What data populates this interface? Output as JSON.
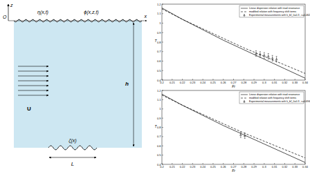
{
  "diagram": {
    "origin": "O",
    "z_axis": "z",
    "x_axis": "x",
    "surface": "η(x,t)",
    "potential": "ϕ(x,z,t)",
    "velocity": "U",
    "depth": "h",
    "bottom": "ζ(x)",
    "length": "L"
  },
  "chart_data": [
    {
      "type": "line",
      "x_label": "Fr",
      "y_label": "T",
      "xlim": [
        0.2,
        0.34
      ],
      "ylim": [
        0.4,
        1.2
      ],
      "xticks": [
        0.2,
        0.21,
        0.22,
        0.23,
        0.24,
        0.25,
        0.26,
        0.27,
        0.28,
        0.29,
        0.3,
        0.31,
        0.32,
        0.33,
        0.34
      ],
      "yticks": [
        0.4,
        0.5,
        0.6,
        0.7,
        0.8,
        0.9,
        1,
        1.1,
        1.2
      ],
      "legend": "upper right",
      "series": [
        {
          "name": "Linear dispersion relation with triad resonance",
          "type": "line",
          "line_style": "solid",
          "color": "#000000",
          "x": [
            0.2,
            0.22,
            0.24,
            0.26,
            0.28,
            0.3,
            0.32,
            0.34
          ],
          "values": [
            1.16,
            1.04,
            0.93,
            0.82,
            0.72,
            0.62,
            0.52,
            0.42
          ]
        },
        {
          "name": "modified relation with frequency shift terms",
          "type": "line",
          "line_style": "dashed",
          "color": "#000000",
          "x": [
            0.2,
            0.22,
            0.24,
            0.26,
            0.28,
            0.3,
            0.32,
            0.34
          ],
          "values": [
            1.15,
            1.04,
            0.94,
            0.84,
            0.74,
            0.65,
            0.56,
            0.47
          ]
        },
        {
          "name": "Experimental measurements with k_bζ_0=0.3 , ε=0.462",
          "type": "scatter",
          "marker": "triangle",
          "color": "#000000",
          "x": [
            0.292,
            0.296,
            0.3,
            0.304,
            0.308,
            0.312
          ],
          "values": [
            0.68,
            0.67,
            0.66,
            0.65,
            0.63,
            0.62
          ],
          "errors": [
            0.03,
            0.03,
            0.03,
            0.03,
            0.03,
            0.03
          ]
        }
      ]
    },
    {
      "type": "line",
      "x_label": "Fr",
      "y_label": "T",
      "xlim": [
        0.2,
        0.34
      ],
      "ylim": [
        0.4,
        1.2
      ],
      "xticks": [
        0.2,
        0.21,
        0.22,
        0.23,
        0.24,
        0.25,
        0.26,
        0.27,
        0.28,
        0.29,
        0.3,
        0.31,
        0.32,
        0.33,
        0.34
      ],
      "yticks": [
        0.4,
        0.5,
        0.6,
        0.7,
        0.8,
        0.9,
        1,
        1.1,
        1.2
      ],
      "legend": "upper right",
      "series": [
        {
          "name": "Linear dispersion relation with triad resonance",
          "type": "line",
          "line_style": "solid",
          "color": "#000000",
          "x": [
            0.2,
            0.22,
            0.24,
            0.26,
            0.28,
            0.3,
            0.32,
            0.34
          ],
          "values": [
            1.16,
            1.04,
            0.93,
            0.82,
            0.72,
            0.62,
            0.52,
            0.42
          ]
        },
        {
          "name": "modified relation with frequency shift terms",
          "type": "line",
          "line_style": "dashed",
          "color": "#000000",
          "x": [
            0.2,
            0.22,
            0.24,
            0.26,
            0.28,
            0.3,
            0.32,
            0.34
          ],
          "values": [
            1.15,
            1.04,
            0.94,
            0.84,
            0.74,
            0.65,
            0.56,
            0.47
          ]
        },
        {
          "name": "Experimental measurements with k_bζ_0=0.3 , ε=0.694",
          "type": "scatter",
          "marker": "triangle",
          "color": "#000000",
          "x": [
            0.277,
            0.281
          ],
          "values": [
            0.72,
            0.71
          ],
          "errors": [
            0.03,
            0.03
          ]
        }
      ]
    }
  ]
}
